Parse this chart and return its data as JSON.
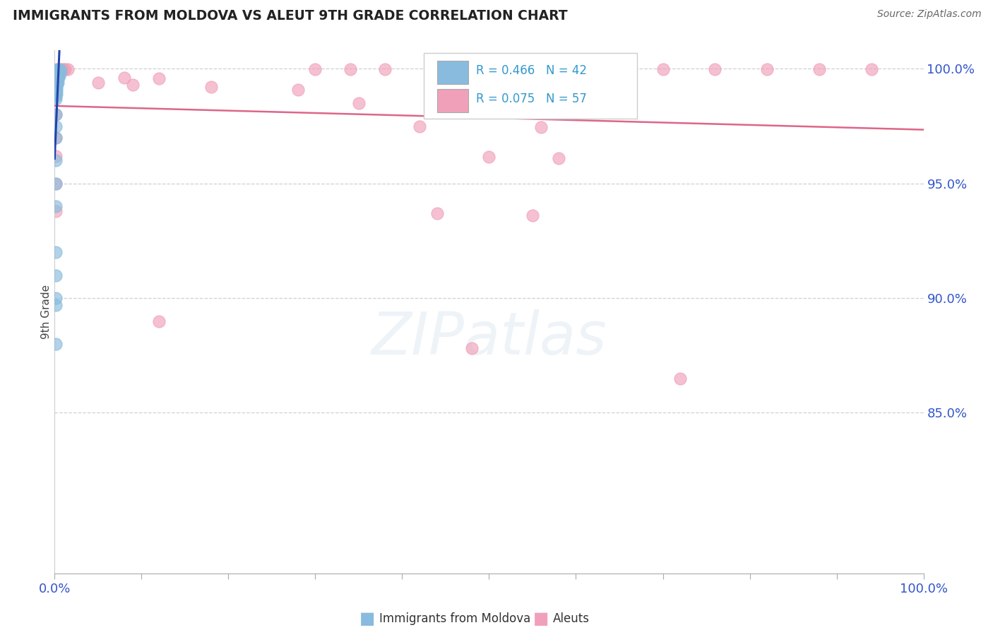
{
  "title": "IMMIGRANTS FROM MOLDOVA VS ALEUT 9TH GRADE CORRELATION CHART",
  "source": "Source: ZipAtlas.com",
  "blue_color": "#88bbdd",
  "pink_color": "#f0a0b8",
  "blue_line_color": "#2244aa",
  "pink_line_color": "#dd6688",
  "ylabel": "9th Grade",
  "xlim": [
    0.0,
    1.0
  ],
  "ylim": [
    0.78,
    1.008
  ],
  "yticks": [
    0.85,
    0.9,
    0.95,
    1.0
  ],
  "ytick_labels": [
    "85.0%",
    "90.0%",
    "95.0%",
    "100.0%"
  ],
  "blue_x": [
    0.002,
    0.003,
    0.005,
    0.007,
    0.001,
    0.002,
    0.003,
    0.004,
    0.006,
    0.001,
    0.002,
    0.003,
    0.004,
    0.005,
    0.001,
    0.002,
    0.003,
    0.001,
    0.002,
    0.003,
    0.004,
    0.001,
    0.002,
    0.001,
    0.002,
    0.001,
    0.002,
    0.001,
    0.002,
    0.001,
    0.001,
    0.001,
    0.001,
    0.001,
    0.001,
    0.001,
    0.001,
    0.001,
    0.001,
    0.001,
    0.001,
    0.001
  ],
  "blue_y": [
    0.9995,
    0.9995,
    0.9995,
    0.9995,
    0.9985,
    0.9985,
    0.998,
    0.9975,
    0.9975,
    0.997,
    0.9968,
    0.9965,
    0.9962,
    0.996,
    0.9955,
    0.9952,
    0.995,
    0.9945,
    0.9942,
    0.994,
    0.9938,
    0.993,
    0.9928,
    0.992,
    0.9918,
    0.991,
    0.9905,
    0.9895,
    0.989,
    0.988,
    0.987,
    0.98,
    0.975,
    0.97,
    0.96,
    0.95,
    0.94,
    0.92,
    0.91,
    0.9,
    0.897,
    0.88
  ],
  "pink_x": [
    0.002,
    0.004,
    0.006,
    0.008,
    0.01,
    0.012,
    0.015,
    0.3,
    0.34,
    0.38,
    0.44,
    0.48,
    0.52,
    0.56,
    0.62,
    0.66,
    0.7,
    0.76,
    0.82,
    0.88,
    0.94,
    0.001,
    0.004,
    0.08,
    0.12,
    0.001,
    0.05,
    0.001,
    0.09,
    0.18,
    0.28,
    0.001,
    0.35,
    0.001,
    0.42,
    0.56,
    0.001,
    0.001,
    0.5,
    0.58,
    0.001,
    0.001,
    0.44,
    0.55,
    0.12,
    0.48,
    0.72
  ],
  "pink_y": [
    0.9998,
    0.9998,
    0.9998,
    0.9998,
    0.9998,
    0.9998,
    0.9998,
    0.9998,
    0.9998,
    0.9998,
    0.9998,
    0.9998,
    0.9998,
    0.9998,
    0.9998,
    0.9998,
    0.9998,
    0.9998,
    0.9998,
    0.9998,
    0.9998,
    0.9975,
    0.9972,
    0.9962,
    0.9958,
    0.9948,
    0.994,
    0.9935,
    0.993,
    0.992,
    0.991,
    0.99,
    0.985,
    0.98,
    0.975,
    0.9745,
    0.97,
    0.962,
    0.9615,
    0.961,
    0.95,
    0.938,
    0.937,
    0.936,
    0.89,
    0.878,
    0.865
  ]
}
